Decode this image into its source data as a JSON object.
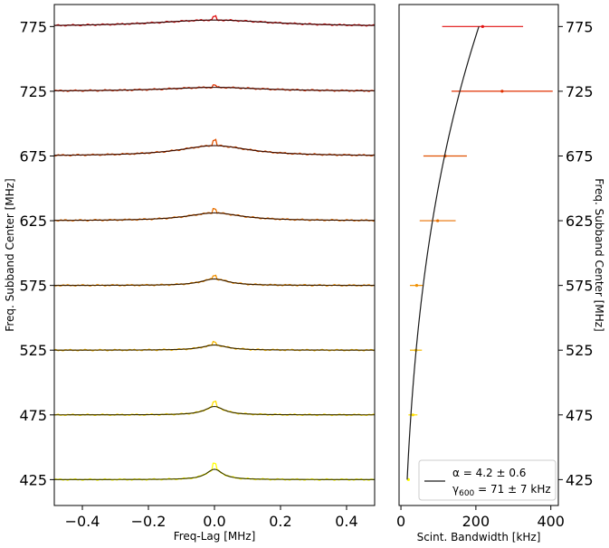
{
  "chart_data": [
    {
      "type": "line",
      "xlabel": "Freq-Lag [MHz]",
      "ylabel": "Freq. Subband Center [MHz]",
      "xlim": [
        -0.485,
        0.485
      ],
      "ylim": [
        405,
        792
      ],
      "xticks": [
        "−0.4",
        "−0.2",
        "0.0",
        "0.2",
        "0.4"
      ],
      "xtick_values": [
        -0.4,
        -0.2,
        0.0,
        0.2,
        0.4
      ],
      "yticks": [
        "425",
        "475",
        "525",
        "575",
        "625",
        "675",
        "725",
        "775"
      ],
      "ytick_values": [
        425,
        475,
        525,
        575,
        625,
        675,
        725,
        775
      ],
      "series": [
        {
          "center": 425,
          "peak": 8.0,
          "width": 0.03,
          "data_color": "#ffff00",
          "fit_color": "#333300"
        },
        {
          "center": 475,
          "peak": 6.5,
          "width": 0.035,
          "data_color": "#ffe000",
          "fit_color": "#332b00"
        },
        {
          "center": 525,
          "peak": 4.0,
          "width": 0.045,
          "data_color": "#f5b800",
          "fit_color": "#332200"
        },
        {
          "center": 575,
          "peak": 5.0,
          "width": 0.05,
          "data_color": "#f09000",
          "fit_color": "#331a00"
        },
        {
          "center": 625,
          "peak": 6.0,
          "width": 0.1,
          "data_color": "#e87000",
          "fit_color": "#331200"
        },
        {
          "center": 675,
          "peak": 8.0,
          "width": 0.13,
          "data_color": "#e05000",
          "fit_color": "#330a00"
        },
        {
          "center": 725,
          "peak": 3.0,
          "width": 0.18,
          "data_color": "#e03000",
          "fit_color": "#2a0500"
        },
        {
          "center": 775,
          "peak": 5.0,
          "width": 0.22,
          "data_color": "#e01010",
          "fit_color": "#2a0000"
        }
      ]
    },
    {
      "type": "scatter",
      "xlabel": "Scint. Bandwidth [kHz]",
      "ylabel": "Freq. Subband Center [MHz]",
      "xlim": [
        -5,
        420
      ],
      "ylim": [
        405,
        792
      ],
      "xticks": [
        "0",
        "200",
        "400"
      ],
      "xtick_values": [
        0,
        200,
        400
      ],
      "yticks": [
        "425",
        "475",
        "525",
        "575",
        "625",
        "675",
        "725",
        "775"
      ],
      "ytick_values": [
        425,
        475,
        525,
        575,
        625,
        675,
        725,
        775
      ],
      "points": [
        {
          "freq": 425,
          "bw": 20,
          "err": 3,
          "color": "#ffff00"
        },
        {
          "freq": 475,
          "bw": 32,
          "err": 12,
          "color": "#ffe000"
        },
        {
          "freq": 525,
          "bw": 40,
          "err": 16,
          "color": "#f5b800"
        },
        {
          "freq": 575,
          "bw": 42,
          "err": 18,
          "color": "#f09000"
        },
        {
          "freq": 625,
          "bw": 98,
          "err": 48,
          "color": "#e87000"
        },
        {
          "freq": 675,
          "bw": 118,
          "err": 58,
          "color": "#e05000"
        },
        {
          "freq": 725,
          "bw": 270,
          "err": 135,
          "color": "#e03000"
        },
        {
          "freq": 775,
          "bw": 218,
          "err": 108,
          "color": "#e01010"
        }
      ],
      "fit": {
        "alpha": 4.2,
        "gamma600": 71,
        "ref_freq": 600,
        "color": "#1a1a1a"
      },
      "legend": {
        "line1": "α =  4.2 ± 0.6",
        "line2_prefix": "γ",
        "line2_sub": "600",
        "line2_suffix": " = 71 ± 7 kHz",
        "placement": "lower right"
      }
    }
  ]
}
